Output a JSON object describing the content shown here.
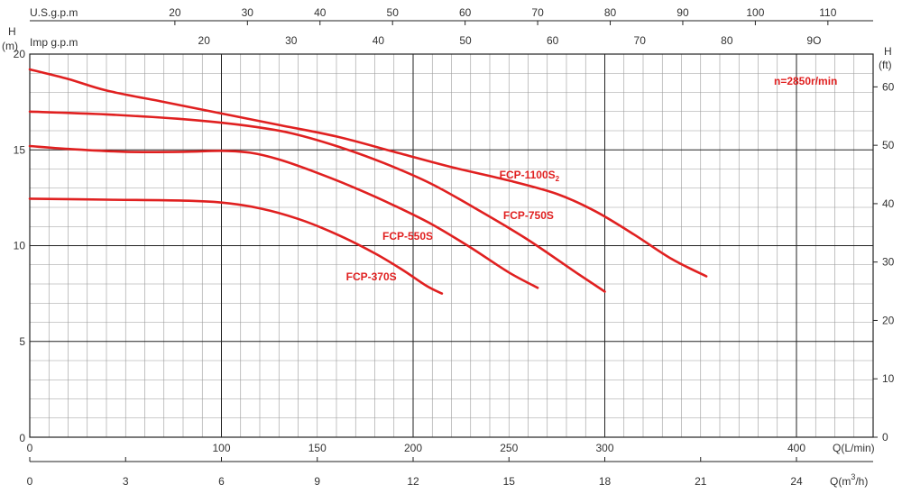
{
  "chart_data": {
    "type": "line",
    "annotation": "n=2850r/min",
    "colors": {
      "curve": "#e02020",
      "grid_major": "#222222",
      "grid_minor": "#9a9a9a",
      "text": "#333333"
    },
    "x_axes": {
      "lpm": {
        "label": "Q(L/min)",
        "range": [
          0,
          440
        ],
        "ticks": [
          0,
          100,
          150,
          200,
          250,
          300,
          400
        ]
      },
      "m3h": {
        "label": "Q(m³/h)",
        "label_main": "Q(m",
        "label_sup": "3",
        "label_tail": "/h)",
        "ticks": [
          0,
          3,
          6,
          9,
          12,
          15,
          18,
          21,
          24
        ]
      },
      "usgpm": {
        "label": "U.S.g.p.m",
        "ticks": [
          20,
          30,
          40,
          50,
          60,
          70,
          80,
          90,
          100,
          110
        ]
      },
      "impgpm": {
        "label": "Imp g.p.m",
        "ticks": [
          20,
          30,
          40,
          50,
          60,
          70,
          80
        ],
        "extra_tick_label": "9O",
        "extra_tick_value": 90
      }
    },
    "y_axes": {
      "left": {
        "label_top": "H",
        "label_unit": "(m)",
        "range": [
          0,
          20
        ],
        "ticks": [
          5,
          10,
          15,
          20
        ]
      },
      "right": {
        "label_top": "H",
        "label_unit": "(ft)",
        "ticks": [
          0,
          10,
          20,
          30,
          40,
          50,
          60
        ]
      }
    },
    "grid": true,
    "series": [
      {
        "name": "FCP-1100S",
        "name_sub": "2",
        "label_at": [
          245,
          13.5
        ],
        "points": [
          [
            0,
            19.2
          ],
          [
            20,
            18.7
          ],
          [
            40,
            18.1
          ],
          [
            70,
            17.5
          ],
          [
            100,
            16.9
          ],
          [
            130,
            16.3
          ],
          [
            160,
            15.7
          ],
          [
            190,
            14.9
          ],
          [
            220,
            14.1
          ],
          [
            250,
            13.4
          ],
          [
            275,
            12.7
          ],
          [
            295,
            11.8
          ],
          [
            315,
            10.6
          ],
          [
            335,
            9.3
          ],
          [
            353,
            8.4
          ]
        ]
      },
      {
        "name": "FCP-750S",
        "label_at": [
          247,
          11.4
        ],
        "points": [
          [
            0,
            17.0
          ],
          [
            40,
            16.85
          ],
          [
            80,
            16.6
          ],
          [
            110,
            16.3
          ],
          [
            135,
            15.9
          ],
          [
            160,
            15.2
          ],
          [
            185,
            14.3
          ],
          [
            210,
            13.2
          ],
          [
            235,
            11.8
          ],
          [
            260,
            10.3
          ],
          [
            285,
            8.6
          ],
          [
            300,
            7.6
          ]
        ]
      },
      {
        "name": "FCP-550S",
        "label_at": [
          184,
          10.3
        ],
        "points": [
          [
            0,
            15.2
          ],
          [
            20,
            15.05
          ],
          [
            50,
            14.9
          ],
          [
            80,
            14.9
          ],
          [
            100,
            14.95
          ],
          [
            115,
            14.85
          ],
          [
            130,
            14.5
          ],
          [
            150,
            13.8
          ],
          [
            170,
            13.0
          ],
          [
            190,
            12.1
          ],
          [
            210,
            11.1
          ],
          [
            230,
            9.9
          ],
          [
            250,
            8.6
          ],
          [
            265,
            7.8
          ]
        ]
      },
      {
        "name": "FCP-370S",
        "label_at": [
          165,
          8.2
        ],
        "points": [
          [
            0,
            12.45
          ],
          [
            40,
            12.4
          ],
          [
            80,
            12.35
          ],
          [
            100,
            12.25
          ],
          [
            120,
            11.95
          ],
          [
            140,
            11.4
          ],
          [
            160,
            10.6
          ],
          [
            180,
            9.6
          ],
          [
            195,
            8.7
          ],
          [
            207,
            7.9
          ],
          [
            215,
            7.5
          ]
        ]
      }
    ]
  }
}
